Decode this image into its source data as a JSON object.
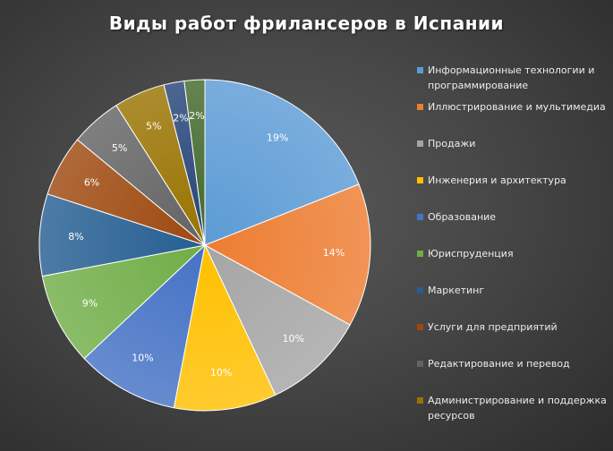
{
  "chart_data": {
    "type": "pie",
    "title": "Виды работ фрилансеров в Испании",
    "legend_position": "right",
    "slices": [
      {
        "label": "Информационные технологии и программирование",
        "value": 19,
        "value_label": "19%",
        "color": "#5b9bd5"
      },
      {
        "label": "Иллюстрирование и мультимедиа",
        "value": 14,
        "value_label": "14%",
        "color": "#ed7d31"
      },
      {
        "label": "Продажи",
        "value": 10,
        "value_label": "10%",
        "color": "#a5a5a5"
      },
      {
        "label": "Инженерия и архитектура",
        "value": 10,
        "value_label": "10%",
        "color": "#ffc000"
      },
      {
        "label": "Образование",
        "value": 10,
        "value_label": "10%",
        "color": "#4472c4"
      },
      {
        "label": "Юриспруденция",
        "value": 9,
        "value_label": "9%",
        "color": "#70ad47"
      },
      {
        "label": "Маркетинг",
        "value": 8,
        "value_label": "8%",
        "color": "#255e91"
      },
      {
        "label": "Услуги для предприятий",
        "value": 6,
        "value_label": "6%",
        "color": "#9e480e"
      },
      {
        "label": "Редактирование и перевод",
        "value": 5,
        "value_label": "5%",
        "color": "#636363"
      },
      {
        "label": "Администрирование и поддержка ресурсов",
        "value": 5,
        "value_label": "5%",
        "color": "#997300"
      },
      {
        "label": "",
        "value": 2,
        "value_label": "2%",
        "color": "#264478"
      },
      {
        "label": "",
        "value": 2,
        "value_label": "2%",
        "color": "#43682b"
      }
    ]
  }
}
